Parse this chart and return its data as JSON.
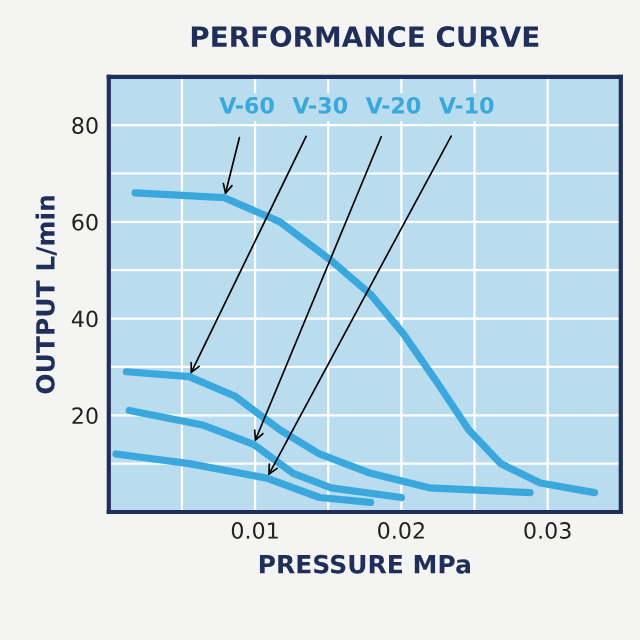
{
  "chart_data": {
    "type": "line",
    "title": "PERFORMANCE CURVE",
    "xlabel": "PRESSURE MPa",
    "ylabel": "OUTPUT L/min",
    "xlim": [
      0,
      0.035
    ],
    "ylim": [
      0,
      90
    ],
    "xticks": [
      {
        "value": 0.005,
        "label": null
      },
      0.01,
      {
        "value": 0.015,
        "label": null
      },
      0.02,
      {
        "value": 0.025,
        "label": null
      },
      0.03
    ],
    "yticks": [
      {
        "value": 10,
        "label": null
      },
      20,
      {
        "value": 30,
        "label": null
      },
      40,
      {
        "value": 50,
        "label": null
      },
      60,
      {
        "value": 70,
        "label": null
      },
      80
    ],
    "grid": true,
    "legend": false,
    "marker": "none",
    "line_style": "solid",
    "series": [
      {
        "name": "V-60",
        "color": "#3aa8dc",
        "x": [
          0.0018,
          0.0079,
          0.0117,
          0.0152,
          0.0179,
          0.0201,
          0.0224,
          0.0246,
          0.0268,
          0.0295,
          0.0332
        ],
        "values": [
          66,
          65,
          60,
          52,
          45,
          37,
          27,
          17,
          10,
          6,
          4
        ]
      },
      {
        "name": "V-30",
        "color": "#3aa8dc",
        "x": [
          0.0012,
          0.0055,
          0.0086,
          0.0117,
          0.0144,
          0.0179,
          0.0219,
          0.0288
        ],
        "values": [
          29,
          28,
          24,
          17,
          12,
          8,
          5,
          4
        ]
      },
      {
        "name": "V-20",
        "color": "#3aa8dc",
        "x": [
          0.0014,
          0.0064,
          0.0099,
          0.0126,
          0.0152,
          0.02
        ],
        "values": [
          21,
          18,
          14,
          8,
          5,
          3
        ]
      },
      {
        "name": "V-10",
        "color": "#3aa8dc",
        "x": [
          0.0005,
          0.0055,
          0.0108,
          0.0144,
          0.0179
        ],
        "values": [
          12,
          10,
          7,
          3,
          2
        ]
      }
    ]
  }
}
